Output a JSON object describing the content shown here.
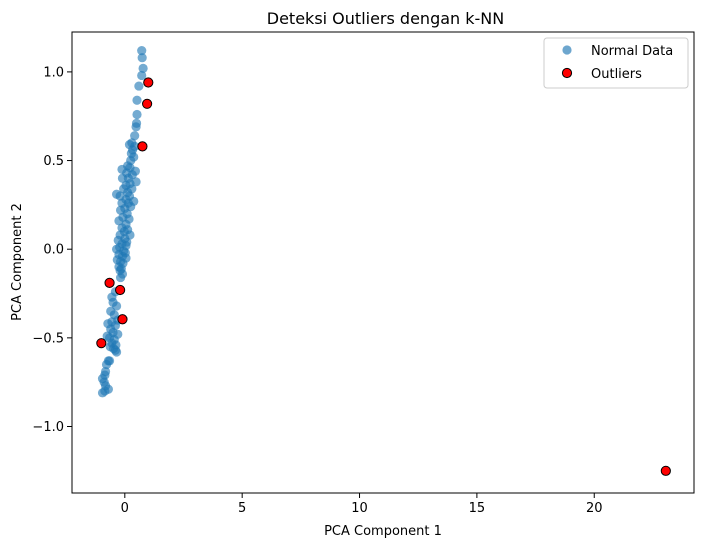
{
  "chart_data": {
    "type": "scatter",
    "title": "Deteksi Outliers dengan k-NN",
    "xlabel": "PCA Component 1",
    "ylabel": "PCA Component 2",
    "xlim": [
      -2.25,
      24.25
    ],
    "ylim": [
      -1.375,
      1.225
    ],
    "xticks": [
      0,
      5,
      10,
      15,
      20
    ],
    "yticks": [
      -1.0,
      -0.5,
      0.0,
      0.5,
      1.0
    ],
    "xtick_labels": [
      "0",
      "5",
      "10",
      "15",
      "20"
    ],
    "ytick_labels": [
      "−1.0",
      "−0.5",
      "0.0",
      "0.5",
      "1.0"
    ],
    "grid": false,
    "legend_position": "top-right",
    "series": [
      {
        "name": "Normal Data",
        "color": "#1f77b4",
        "points": [
          [
            0.72,
            1.12
          ],
          [
            0.74,
            1.08
          ],
          [
            0.78,
            1.02
          ],
          [
            0.72,
            0.98
          ],
          [
            0.6,
            0.92
          ],
          [
            0.52,
            0.84
          ],
          [
            0.52,
            0.76
          ],
          [
            0.5,
            0.71
          ],
          [
            0.48,
            0.69
          ],
          [
            0.42,
            0.64
          ],
          [
            0.3,
            0.6
          ],
          [
            0.2,
            0.59
          ],
          [
            0.42,
            0.58
          ],
          [
            0.33,
            0.56
          ],
          [
            0.28,
            0.54
          ],
          [
            0.38,
            0.52
          ],
          [
            0.25,
            0.5
          ],
          [
            0.12,
            0.47
          ],
          [
            0.22,
            0.46
          ],
          [
            0.45,
            0.44
          ],
          [
            -0.12,
            0.45
          ],
          [
            0.08,
            0.43
          ],
          [
            0.32,
            0.42
          ],
          [
            0.15,
            0.4
          ],
          [
            -0.1,
            0.4
          ],
          [
            0.48,
            0.38
          ],
          [
            0.22,
            0.37
          ],
          [
            0.05,
            0.36
          ],
          [
            -0.05,
            0.34
          ],
          [
            0.3,
            0.34
          ],
          [
            0.12,
            0.32
          ],
          [
            -0.35,
            0.31
          ],
          [
            0.2,
            0.3
          ],
          [
            -0.2,
            0.3
          ],
          [
            0.05,
            0.28
          ],
          [
            0.38,
            0.27
          ],
          [
            0.15,
            0.26
          ],
          [
            -0.12,
            0.26
          ],
          [
            0.25,
            0.24
          ],
          [
            0.0,
            0.23
          ],
          [
            -0.18,
            0.22
          ],
          [
            0.1,
            0.2
          ],
          [
            -0.08,
            0.18
          ],
          [
            0.18,
            0.17
          ],
          [
            -0.25,
            0.16
          ],
          [
            0.05,
            0.14
          ],
          [
            -0.12,
            0.12
          ],
          [
            0.12,
            0.11
          ],
          [
            -0.02,
            0.1
          ],
          [
            0.22,
            0.08
          ],
          [
            -0.2,
            0.08
          ],
          [
            0.0,
            0.06
          ],
          [
            -0.28,
            0.05
          ],
          [
            0.08,
            0.04
          ],
          [
            -0.12,
            0.03
          ],
          [
            0.05,
            0.02
          ],
          [
            -0.22,
            0.01
          ],
          [
            -0.35,
            0.0
          ],
          [
            -0.05,
            -0.01
          ],
          [
            0.02,
            -0.02
          ],
          [
            -0.25,
            -0.03
          ],
          [
            -0.1,
            -0.04
          ],
          [
            0.05,
            -0.05
          ],
          [
            -0.32,
            -0.06
          ],
          [
            -0.18,
            -0.07
          ],
          [
            -0.08,
            -0.08
          ],
          [
            -0.25,
            -0.1
          ],
          [
            -0.15,
            -0.11
          ],
          [
            -0.2,
            -0.12
          ],
          [
            -0.1,
            -0.14
          ],
          [
            -0.18,
            -0.16
          ],
          [
            -0.4,
            -0.24
          ],
          [
            -0.55,
            -0.27
          ],
          [
            -0.5,
            -0.3
          ],
          [
            -0.35,
            -0.32
          ],
          [
            -0.6,
            -0.35
          ],
          [
            -0.45,
            -0.37
          ],
          [
            -0.3,
            -0.4
          ],
          [
            -0.55,
            -0.41
          ],
          [
            -0.72,
            -0.42
          ],
          [
            -0.4,
            -0.43
          ],
          [
            -0.6,
            -0.45
          ],
          [
            -0.5,
            -0.47
          ],
          [
            -0.3,
            -0.48
          ],
          [
            -0.75,
            -0.49
          ],
          [
            -0.65,
            -0.5
          ],
          [
            -0.45,
            -0.51
          ],
          [
            -0.55,
            -0.53
          ],
          [
            -0.38,
            -0.54
          ],
          [
            -0.62,
            -0.55
          ],
          [
            -0.48,
            -0.56
          ],
          [
            -0.4,
            -0.57
          ],
          [
            -0.35,
            -0.58
          ],
          [
            -0.7,
            -0.63
          ],
          [
            -0.78,
            -0.65
          ],
          [
            -0.65,
            -0.63
          ],
          [
            -0.82,
            -0.69
          ],
          [
            -0.85,
            -0.71
          ],
          [
            -0.95,
            -0.73
          ],
          [
            -0.88,
            -0.75
          ],
          [
            -0.82,
            -0.77
          ],
          [
            -0.7,
            -0.79
          ],
          [
            -0.85,
            -0.8
          ],
          [
            -0.95,
            -0.81
          ]
        ]
      },
      {
        "name": "Outliers",
        "color": "#ff0000",
        "edge_color": "#000000",
        "points": [
          [
            1.0,
            0.94
          ],
          [
            0.95,
            0.82
          ],
          [
            0.75,
            0.58
          ],
          [
            -0.65,
            -0.19
          ],
          [
            -0.2,
            -0.23
          ],
          [
            -0.1,
            -0.395
          ],
          [
            -1.0,
            -0.53
          ],
          [
            23.05,
            -1.25
          ]
        ]
      }
    ]
  }
}
